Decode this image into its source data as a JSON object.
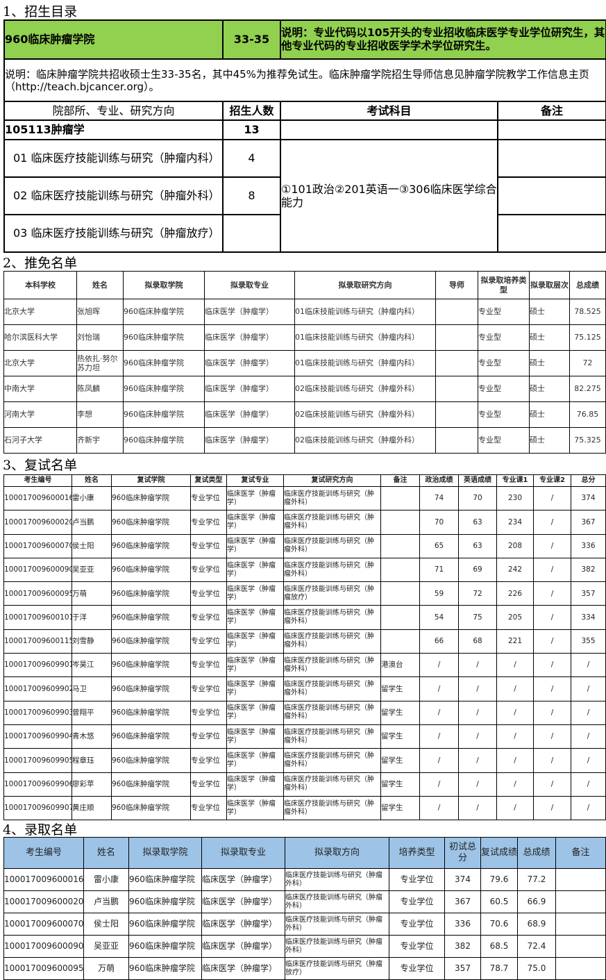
{
  "section1": {
    "heading": "1、招生目录",
    "college": "960临床肿瘤学院",
    "quota": "33-35",
    "note_green": "说明：专业代码以105开头的专业招收临床医学专业学位研究生，其他专业代码的专业招收医学学术学位研究生。",
    "note": "说明：临床肿瘤学院共招收硕士生33-35名，其中45%为推荐免试生。临床肿瘤学院招生导师信息见肿瘤学院教学工作信息主页（http://teach.bjcancer.org）。",
    "headers": [
      "院部所、专业、研究方向",
      "招生人数",
      "考试科目",
      "备注"
    ],
    "major": {
      "name": "105113肿瘤学",
      "count": "13"
    },
    "directions": [
      {
        "name": "01 临床医疗技能训练与研究（肿瘤内科）",
        "count": "4"
      },
      {
        "name": "02 临床医疗技能训练与研究（肿瘤外科）",
        "count": "8"
      },
      {
        "name": "03 临床医疗技能训练与研究（肿瘤放疗）",
        "count": ""
      }
    ],
    "exam": "①101政治②201英语一③306临床医学综合能力",
    "colors": {
      "green": "#92D050"
    }
  },
  "section2": {
    "heading": "2、推免名单",
    "headers": [
      "本科学校",
      "姓名",
      "拟录取学院",
      "拟录取专业",
      "拟录取研究方向",
      "导师",
      "拟录取培养类型",
      "拟录取层次",
      "总成绩"
    ],
    "rows": [
      [
        "北京大学",
        "张旭晖",
        "960临床肿瘤学院",
        "临床医学（肿瘤学）",
        "01临床技能训练与研究（肿瘤内科）",
        "",
        "专业型",
        "硕士",
        "78.525"
      ],
      [
        "哈尔滨医科大学",
        "刘怡瑞",
        "960临床肿瘤学院",
        "临床医学（肿瘤学）",
        "01临床技能训练与研究（肿瘤内科）",
        "",
        "专业型",
        "硕士",
        "75.125"
      ],
      [
        "北京大学",
        "热依扎·努尔苏力坦",
        "960临床肿瘤学院",
        "临床医学（肿瘤学）",
        "01临床技能训练与研究（肿瘤内科）",
        "",
        "专业型",
        "硕士",
        "72"
      ],
      [
        "中南大学",
        "陈凤麟",
        "960临床肿瘤学院",
        "临床医学（肿瘤学）",
        "02临床技能训练与研究（肿瘤外科）",
        "",
        "专业型",
        "硕士",
        "82.275"
      ],
      [
        "河南大学",
        "李想",
        "960临床肿瘤学院",
        "临床医学（肿瘤学）",
        "02临床技能训练与研究（肿瘤外科）",
        "",
        "专业型",
        "硕士",
        "76.85"
      ],
      [
        "石河子大学",
        "齐新宇",
        "960临床肿瘤学院",
        "临床医学（肿瘤学）",
        "02临床技能训练与研究（肿瘤外科）",
        "",
        "专业型",
        "硕士",
        "75.325"
      ]
    ]
  },
  "section3": {
    "heading": "3、复试名单",
    "headers": [
      "考生编号",
      "姓名",
      "复试学院",
      "复试类型",
      "复试专业",
      "复试研究方向",
      "备注",
      "政治成绩",
      "英语成绩",
      "专业课1",
      "专业课2",
      "总分"
    ],
    "rows": [
      [
        "100017009600016",
        "雷小康",
        "960临床肿瘤学院",
        "专业学位",
        "临床医学（肿瘤学）",
        "临床医疗技能训练与研究（肿瘤外科）",
        "",
        "74",
        "70",
        "230",
        "/",
        "374"
      ],
      [
        "100017009600020",
        "卢当鹏",
        "960临床肿瘤学院",
        "专业学位",
        "临床医学（肿瘤学）",
        "临床医疗技能训练与研究（肿瘤外科）",
        "",
        "70",
        "63",
        "234",
        "/",
        "367"
      ],
      [
        "100017009600070",
        "侯士阳",
        "960临床肿瘤学院",
        "专业学位",
        "临床医学（肿瘤学）",
        "临床医疗技能训练与研究（肿瘤外科）",
        "",
        "65",
        "63",
        "208",
        "/",
        "336"
      ],
      [
        "100017009600090",
        "吴亚亚",
        "960临床肿瘤学院",
        "专业学位",
        "临床医学（肿瘤学）",
        "临床医疗技能训练与研究（肿瘤外科）",
        "",
        "71",
        "69",
        "242",
        "/",
        "382"
      ],
      [
        "100017009600095",
        "万萌",
        "960临床肿瘤学院",
        "专业学位",
        "临床医学（肿瘤学）",
        "临床医疗技能训练与研究（肿瘤放疗）",
        "",
        "59",
        "72",
        "226",
        "/",
        "357"
      ],
      [
        "100017009600101",
        "于洋",
        "960临床肿瘤学院",
        "专业学位",
        "临床医学（肿瘤学）",
        "临床医疗技能训练与研究（肿瘤外科）",
        "",
        "54",
        "75",
        "205",
        "/",
        "334"
      ],
      [
        "100017009600115",
        "刘雪静",
        "960临床肿瘤学院",
        "专业学位",
        "临床医学（肿瘤学）",
        "临床医疗技能训练与研究（肿瘤外科）",
        "",
        "66",
        "68",
        "221",
        "/",
        "355"
      ],
      [
        "100017009609901",
        "岑昊江",
        "960临床肿瘤学院",
        "专业学位",
        "临床医学（肿瘤学）",
        "临床医疗技能训练与研究（肿瘤外科）",
        "港澳台",
        "/",
        "/",
        "/",
        "/",
        "/"
      ],
      [
        "100017009609902",
        "马卫",
        "960临床肿瘤学院",
        "专业学位",
        "临床医学（肿瘤学）",
        "临床医疗技能训练与研究（肿瘤外科）",
        "留学生",
        "/",
        "/",
        "/",
        "/",
        "/"
      ],
      [
        "100017009609903",
        "曾翔平",
        "960临床肿瘤学院",
        "专业学位",
        "临床医学（肿瘤学）",
        "临床医疗技能训练与研究（肿瘤外科）",
        "留学生",
        "/",
        "/",
        "/",
        "/",
        "/"
      ],
      [
        "100017009609904",
        "青木悠",
        "960临床肿瘤学院",
        "专业学位",
        "临床医学（肿瘤学）",
        "临床医疗技能训练与研究（肿瘤外科）",
        "留学生",
        "/",
        "/",
        "/",
        "/",
        "/"
      ],
      [
        "100017009609905",
        "程章珏",
        "960临床肿瘤学院",
        "专业学位",
        "临床医学（肿瘤学）",
        "临床医疗技能训练与研究（肿瘤外科）",
        "留学生",
        "/",
        "/",
        "/",
        "/",
        "/"
      ],
      [
        "100017009609906",
        "廖彩苹",
        "960临床肿瘤学院",
        "专业学位",
        "临床医学（肿瘤学）",
        "临床医疗技能训练与研究（肿瘤外科）",
        "留学生",
        "/",
        "/",
        "/",
        "/",
        "/"
      ],
      [
        "100017009609907",
        "黄庄顺",
        "960临床肿瘤学院",
        "专业学位",
        "临床医学（肿瘤学）",
        "临床医疗技能训练与研究（肿瘤外科）",
        "留学生",
        "/",
        "/",
        "/",
        "/",
        "/"
      ]
    ]
  },
  "section4": {
    "heading": "4、录取名单",
    "headers": [
      "考生编号",
      "姓名",
      "拟录取学院",
      "拟录取专业",
      "拟录取方向",
      "培养类型",
      "初试总分",
      "复试成绩",
      "总成绩",
      "备注"
    ],
    "rows": [
      [
        "100017009600016",
        "雷小康",
        "960临床肿瘤学院",
        "临床医学（肿瘤学）",
        "临床医疗技能训练与研究（肿瘤外科）",
        "专业学位",
        "374",
        "79.6",
        "77.2",
        ""
      ],
      [
        "100017009600020",
        "卢当鹏",
        "960临床肿瘤学院",
        "临床医学（肿瘤学）",
        "临床医疗技能训练与研究（肿瘤外科）",
        "专业学位",
        "367",
        "60.5",
        "66.9",
        ""
      ],
      [
        "100017009600070",
        "侯士阳",
        "960临床肿瘤学院",
        "临床医学（肿瘤学）",
        "临床医疗技能训练与研究（肿瘤外科）",
        "专业学位",
        "336",
        "70.6",
        "68.9",
        ""
      ],
      [
        "100017009600090",
        "吴亚亚",
        "960临床肿瘤学院",
        "临床医学（肿瘤学）",
        "临床医疗技能训练与研究（肿瘤外科）",
        "专业学位",
        "382",
        "68.5",
        "72.4",
        ""
      ],
      [
        "100017009600095",
        "万萌",
        "960临床肿瘤学院",
        "临床医学（肿瘤学）",
        "临床医疗技能训练与研究（肿瘤放疗）",
        "专业学位",
        "357",
        "78.7",
        "75.0",
        ""
      ]
    ],
    "colors": {
      "header": "#9DC3E6"
    }
  }
}
